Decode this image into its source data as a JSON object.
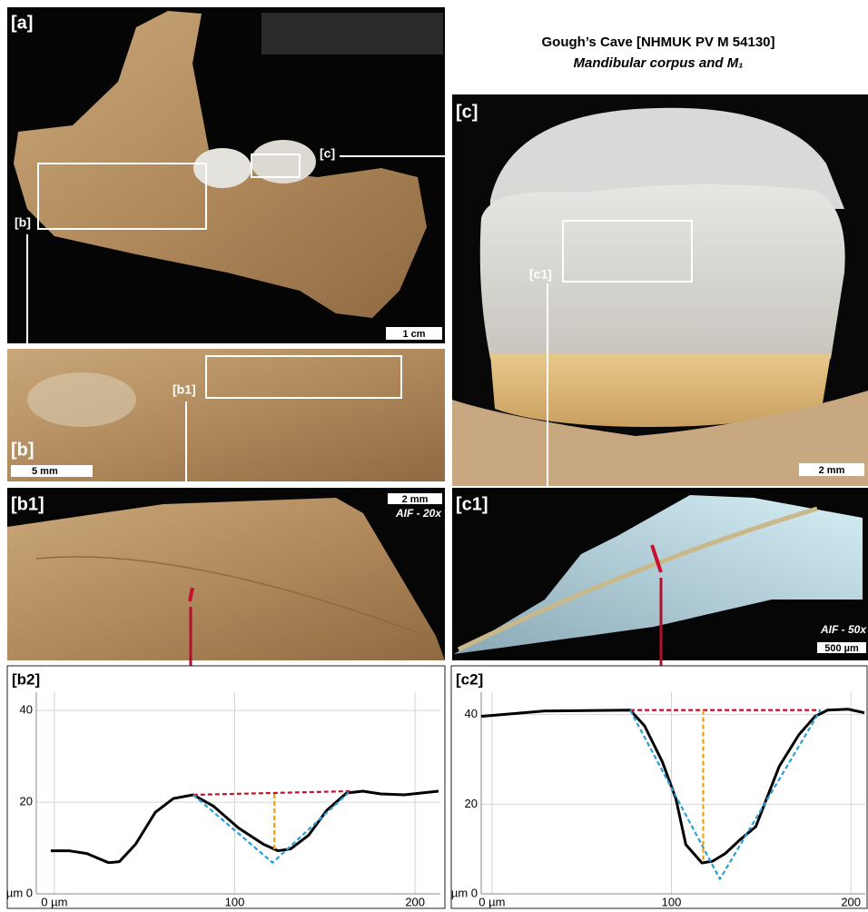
{
  "header": {
    "title": "Gough’s Cave [NHMUK PV M 54130]",
    "subtitle": "Mandibular corpus and M₁"
  },
  "panels": {
    "a": {
      "label": "[a]",
      "scale": "1 cm",
      "callouts": [
        "[b]",
        "[c]"
      ]
    },
    "b": {
      "label": "[b]",
      "scale": "5 mm",
      "callout": "[b1]"
    },
    "b1": {
      "label": "[b1]",
      "scale": "2 mm",
      "method": "AIF - 20x"
    },
    "c": {
      "label": "[c]",
      "scale": "2 mm",
      "callout": "[c1]"
    },
    "c1": {
      "label": "[c1]",
      "scale": "500 µm",
      "method": "AIF - 50x"
    }
  },
  "chart_data": [
    {
      "type": "line",
      "title": "[b2]",
      "xlim": [
        -10,
        214
      ],
      "ylim": [
        0,
        44
      ],
      "xticks": [
        {
          "value": 0,
          "label": "0 µm"
        },
        100,
        200
      ],
      "yticks": [
        {
          "value": 0,
          "label": "µm 0"
        },
        20,
        40
      ],
      "grid": true,
      "series": [
        {
          "color": "#000000",
          "line_style": "solid",
          "x": [
            -2,
            8,
            18,
            30,
            36,
            45,
            56,
            66,
            77,
            88,
            102,
            116,
            124,
            131,
            141,
            151,
            162,
            171,
            181,
            194,
            213
          ],
          "values": [
            9.4,
            9.4,
            8.8,
            6.8,
            7,
            10.8,
            17.8,
            20.8,
            21.6,
            19.2,
            14.4,
            10.8,
            9.4,
            9.8,
            12.8,
            18.2,
            22,
            22.4,
            21.8,
            21.6,
            22.4
          ]
        },
        {
          "color": "#c8102e",
          "line_style": "dashed",
          "x": [
            77,
            164
          ],
          "values": [
            21.6,
            22.4
          ]
        },
        {
          "color": "#2a9fd6",
          "line_style": "dashed",
          "x": [
            77,
            121,
            164
          ],
          "values": [
            21.6,
            6.8,
            22.4
          ]
        },
        {
          "color": "#f39c12",
          "line_style": "dashed",
          "x": [
            122,
            122
          ],
          "values": [
            21.8,
            9.4
          ]
        }
      ]
    },
    {
      "type": "line",
      "title": "[c2]",
      "xlim": [
        -6,
        208
      ],
      "ylim": [
        0,
        45
      ],
      "xticks": [
        {
          "value": 0,
          "label": "0 µm"
        },
        100,
        200
      ],
      "yticks": [
        {
          "value": 0,
          "label": "µm 0"
        },
        20,
        40
      ],
      "grid": true,
      "series": [
        {
          "color": "#000000",
          "line_style": "solid",
          "x": [
            -6,
            29,
            77,
            85,
            95,
            102.5,
            108,
            117,
            123,
            130,
            138,
            147,
            153,
            160,
            171,
            180,
            187,
            198.5,
            207.5
          ],
          "values": [
            39.6,
            40.8,
            41,
            37.5,
            29.4,
            21.2,
            11,
            6.9,
            7.3,
            9,
            12,
            15,
            21.2,
            28.4,
            35.5,
            39.6,
            41,
            41.2,
            40.4
          ]
        },
        {
          "color": "#c8102e",
          "line_style": "dashed",
          "x": [
            77,
            183
          ],
          "values": [
            41,
            41
          ]
        },
        {
          "color": "#2a9fd6",
          "line_style": "dashed",
          "x": [
            77,
            127,
            183
          ],
          "values": [
            41,
            3.3,
            41
          ]
        },
        {
          "color": "#f39c12",
          "line_style": "dashed",
          "x": [
            117.7,
            117.7
          ],
          "values": [
            41,
            6.9
          ]
        }
      ]
    }
  ]
}
